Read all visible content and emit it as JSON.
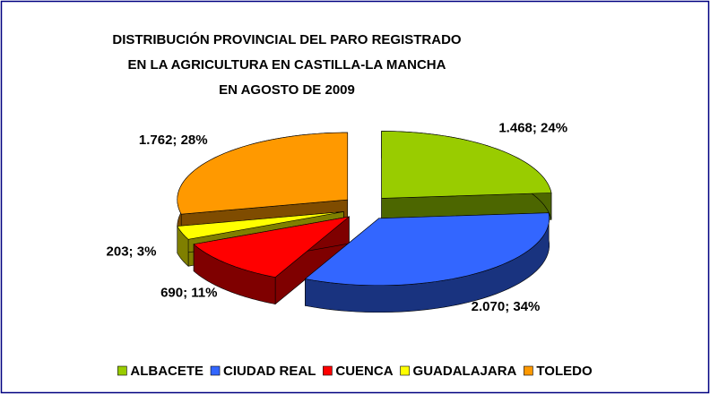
{
  "chart_data": {
    "type": "pie",
    "title": [
      "DISTRIBUCIÓN PROVINCIAL DEL PARO REGISTRADO",
      "EN LA AGRICULTURA EN CASTILLA-LA MANCHA",
      "EN AGOSTO DE 2009"
    ],
    "categories": [
      "ALBACETE",
      "CIUDAD REAL",
      "CUENCA",
      "GUADALAJARA",
      "TOLEDO"
    ],
    "values": [
      1468,
      2070,
      690,
      203,
      1762
    ],
    "value_labels": [
      "1.468; 24%",
      "2.070; 34%",
      "690; 11%",
      "203; 3%",
      "1.762; 28%"
    ],
    "colors": [
      "#99cc00",
      "#3366ff",
      "#ff0000",
      "#ffff00",
      "#ff9900"
    ],
    "legend": "bottom"
  }
}
